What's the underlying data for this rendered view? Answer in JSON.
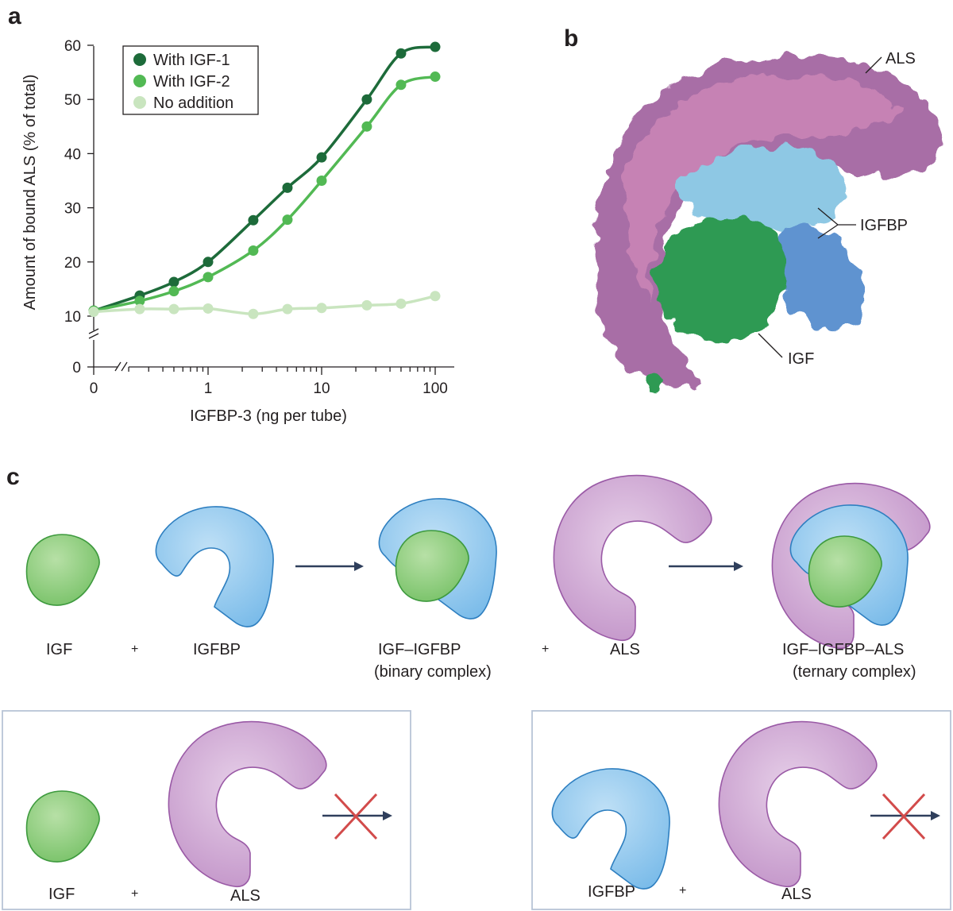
{
  "panels": {
    "a": "a",
    "b": "b",
    "c": "c"
  },
  "chart_data": {
    "type": "scatter",
    "xlabel": "IGFBP-3 (ng per tube)",
    "ylabel": "Amount of bound ALS (% of total)",
    "x_scale": "log",
    "x_ticks": [
      "0",
      "1",
      "10",
      "100"
    ],
    "y_ticks": [
      "0",
      "10",
      "20",
      "30",
      "40",
      "50",
      "60"
    ],
    "ylim": [
      0,
      60
    ],
    "legend_position": "top-left",
    "series": [
      {
        "name": "With IGF-1",
        "color": "#1d6b3a",
        "x": [
          0,
          0.25,
          0.5,
          1,
          2.5,
          5,
          10,
          25,
          50,
          100
        ],
        "y": [
          11,
          13.8,
          16.3,
          20,
          27.7,
          33.7,
          39.3,
          50,
          58.5,
          59.7
        ]
      },
      {
        "name": "With IGF-2",
        "color": "#52b954",
        "x": [
          0,
          0.25,
          0.5,
          1,
          2.5,
          5,
          10,
          25,
          50,
          100
        ],
        "y": [
          11,
          12.8,
          14.6,
          17.2,
          22.1,
          27.8,
          35,
          45,
          52.7,
          54.2
        ]
      },
      {
        "name": "No addition",
        "color": "#c9e5bf",
        "x": [
          0,
          0.25,
          0.5,
          1,
          2.5,
          5,
          10,
          25,
          50,
          100
        ],
        "y": [
          10.8,
          11.3,
          11.3,
          11.4,
          10.4,
          11.3,
          11.5,
          12,
          12.3,
          13.7
        ]
      }
    ]
  },
  "structure": {
    "als_label": "ALS",
    "igfbp_label": "IGFBP",
    "igf_label": "IGF"
  },
  "scheme": {
    "igf": "IGF",
    "plus": "+",
    "igfbp": "IGFBP",
    "binary_name": "IGF–IGFBP",
    "binary_note": "(binary complex)",
    "als": "ALS",
    "ternary_name": "IGF–IGFBP–ALS",
    "ternary_note": "(ternary complex)",
    "box1": {
      "igf": "IGF",
      "plus": "+",
      "als": "ALS"
    },
    "box2": {
      "igfbp": "IGFBP",
      "plus": "+",
      "als": "ALS"
    }
  },
  "colors": {
    "igf": "#7cc56a",
    "igfbp": "#7ec0ea",
    "als": "#c493c9",
    "arrow": "#2f3f5c",
    "cross": "#d24b4b",
    "box_border": "#b8c4d6"
  }
}
